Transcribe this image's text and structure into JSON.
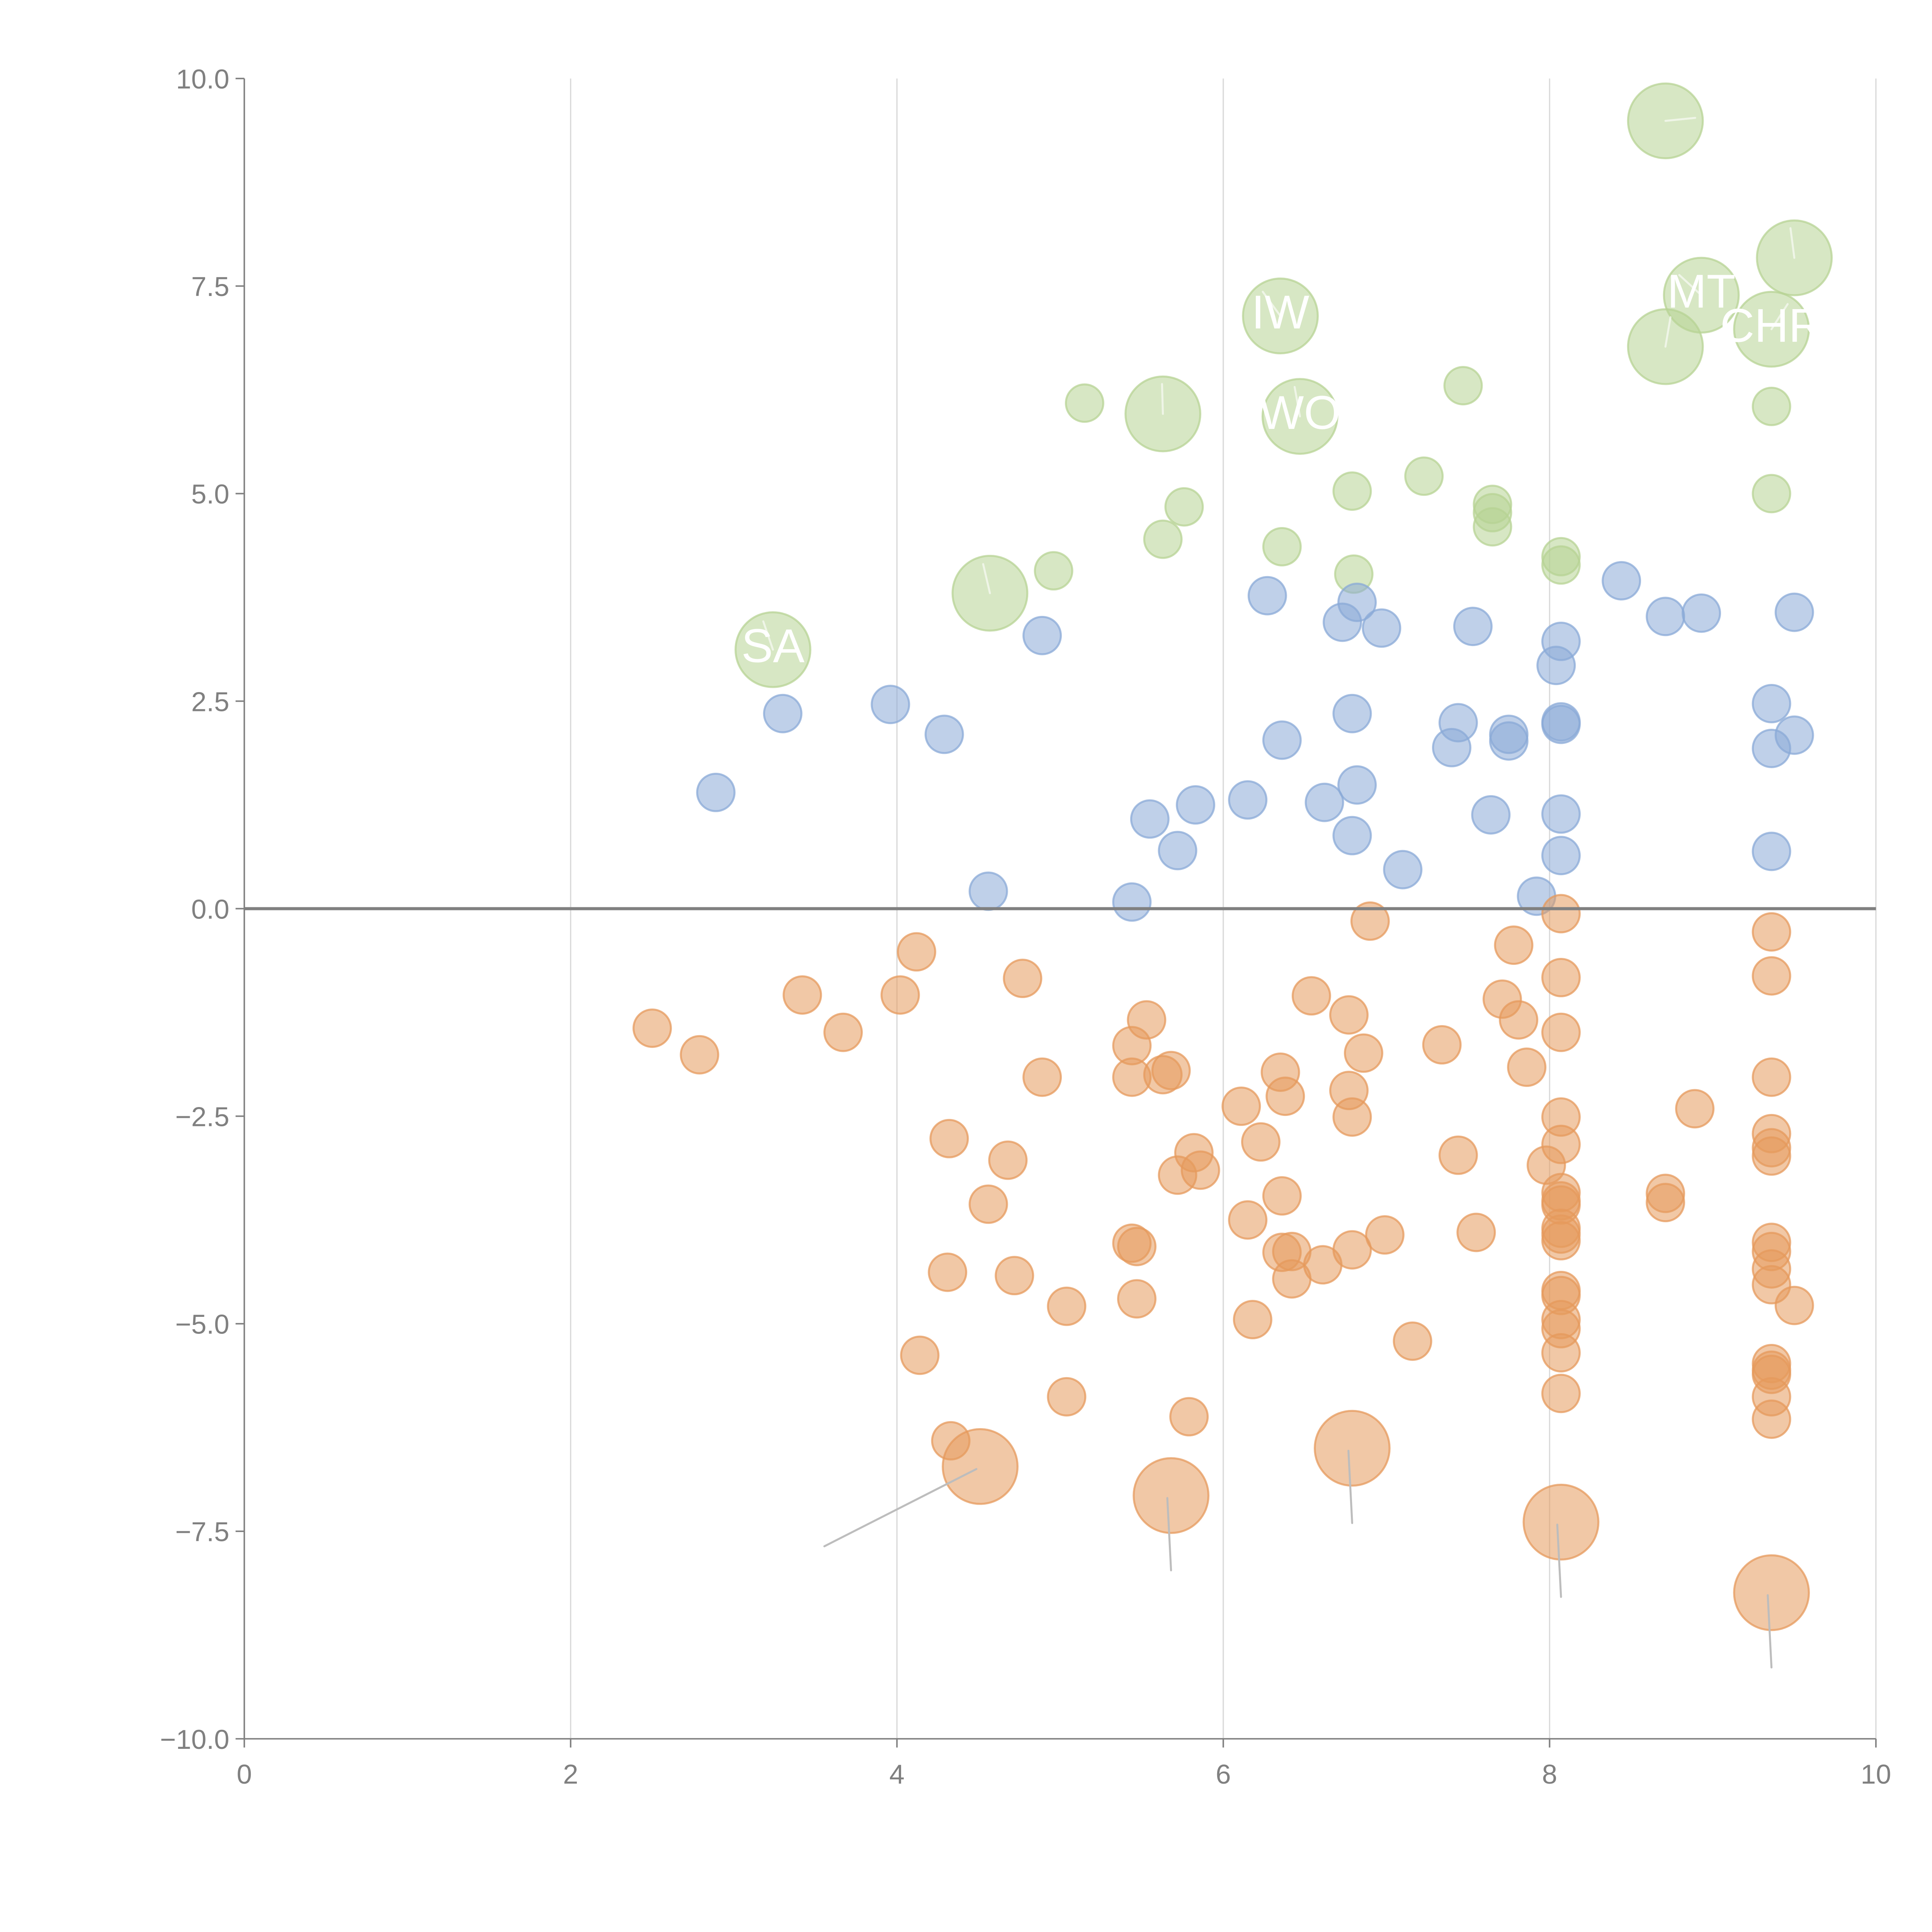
{
  "chart_data": {
    "type": "scatter",
    "title": "",
    "xlabel": "",
    "ylabel": "",
    "xlim": [
      0,
      10
    ],
    "ylim": [
      -10,
      10
    ],
    "x_ticks": [
      "0",
      "2",
      "4",
      "6",
      "8",
      "10"
    ],
    "y_ticks": [
      "10.0",
      "7.5",
      "5.0",
      "2.5",
      "0.0",
      "−2.5",
      "−5.0",
      "−7.5",
      "−10.0"
    ],
    "grid": "vertical",
    "reference_line": {
      "axis": "y",
      "value": 0
    },
    "legend": "none",
    "size_encoding": "bubble area (small=1, large=4)",
    "series": [
      {
        "name": "green",
        "color": "#b7d394",
        "points": [
          {
            "x": 3.24,
            "y": 3.12,
            "size": 4,
            "label": "SA"
          },
          {
            "x": 4.57,
            "y": 3.8,
            "size": 4,
            "label": ""
          },
          {
            "x": 4.96,
            "y": 4.07,
            "size": 1,
            "label": ""
          },
          {
            "x": 5.15,
            "y": 6.09,
            "size": 1,
            "label": ""
          },
          {
            "x": 5.63,
            "y": 5.96,
            "size": 4,
            "label": ""
          },
          {
            "x": 5.63,
            "y": 4.45,
            "size": 1,
            "label": ""
          },
          {
            "x": 5.76,
            "y": 4.84,
            "size": 1,
            "label": ""
          },
          {
            "x": 6.35,
            "y": 7.14,
            "size": 4,
            "label": "IW"
          },
          {
            "x": 6.36,
            "y": 4.36,
            "size": 1,
            "label": ""
          },
          {
            "x": 6.47,
            "y": 5.93,
            "size": 4,
            "label": "WO"
          },
          {
            "x": 6.79,
            "y": 5.03,
            "size": 1,
            "label": ""
          },
          {
            "x": 6.8,
            "y": 4.03,
            "size": 1,
            "label": ""
          },
          {
            "x": 7.23,
            "y": 5.21,
            "size": 1,
            "label": ""
          },
          {
            "x": 7.47,
            "y": 6.3,
            "size": 1,
            "label": ""
          },
          {
            "x": 7.65,
            "y": 4.87,
            "size": 1,
            "label": ""
          },
          {
            "x": 7.65,
            "y": 4.77,
            "size": 1,
            "label": ""
          },
          {
            "x": 7.65,
            "y": 4.6,
            "size": 1,
            "label": ""
          },
          {
            "x": 8.07,
            "y": 4.24,
            "size": 1,
            "label": ""
          },
          {
            "x": 8.07,
            "y": 4.14,
            "size": 1,
            "label": ""
          },
          {
            "x": 8.71,
            "y": 9.49,
            "size": 4,
            "label": ""
          },
          {
            "x": 8.71,
            "y": 6.77,
            "size": 4,
            "label": ""
          },
          {
            "x": 8.93,
            "y": 7.39,
            "size": 4,
            "label": "MT"
          },
          {
            "x": 9.36,
            "y": 6.98,
            "size": 4,
            "label": "CHR"
          },
          {
            "x": 9.5,
            "y": 7.84,
            "size": 4,
            "label": ""
          },
          {
            "x": 9.36,
            "y": 6.05,
            "size": 1,
            "label": ""
          },
          {
            "x": 9.36,
            "y": 5.0,
            "size": 1,
            "label": ""
          }
        ]
      },
      {
        "name": "blue",
        "color": "#8aaad7",
        "points": [
          {
            "x": 2.89,
            "y": 1.4,
            "size": 1
          },
          {
            "x": 3.3,
            "y": 2.35,
            "size": 1
          },
          {
            "x": 3.96,
            "y": 2.46,
            "size": 1
          },
          {
            "x": 4.29,
            "y": 2.1,
            "size": 1
          },
          {
            "x": 4.56,
            "y": 0.21,
            "size": 1
          },
          {
            "x": 4.89,
            "y": 3.29,
            "size": 1
          },
          {
            "x": 5.44,
            "y": 0.08,
            "size": 1
          },
          {
            "x": 5.55,
            "y": 1.08,
            "size": 1
          },
          {
            "x": 5.72,
            "y": 0.7,
            "size": 1
          },
          {
            "x": 5.83,
            "y": 1.25,
            "size": 1
          },
          {
            "x": 6.15,
            "y": 1.31,
            "size": 1
          },
          {
            "x": 6.27,
            "y": 3.77,
            "size": 1
          },
          {
            "x": 6.36,
            "y": 2.03,
            "size": 1
          },
          {
            "x": 6.62,
            "y": 1.28,
            "size": 1
          },
          {
            "x": 6.73,
            "y": 3.45,
            "size": 1
          },
          {
            "x": 6.79,
            "y": 2.35,
            "size": 1
          },
          {
            "x": 6.79,
            "y": 0.88,
            "size": 1
          },
          {
            "x": 6.82,
            "y": 3.69,
            "size": 1
          },
          {
            "x": 6.82,
            "y": 1.49,
            "size": 1
          },
          {
            "x": 6.97,
            "y": 3.38,
            "size": 1
          },
          {
            "x": 7.1,
            "y": 0.47,
            "size": 1
          },
          {
            "x": 7.4,
            "y": 1.94,
            "size": 1
          },
          {
            "x": 7.44,
            "y": 2.24,
            "size": 1
          },
          {
            "x": 7.53,
            "y": 3.4,
            "size": 1
          },
          {
            "x": 7.64,
            "y": 1.13,
            "size": 1
          },
          {
            "x": 7.75,
            "y": 2.1,
            "size": 1
          },
          {
            "x": 7.75,
            "y": 2.02,
            "size": 1
          },
          {
            "x": 7.92,
            "y": 0.15,
            "size": 1
          },
          {
            "x": 8.04,
            "y": 2.93,
            "size": 1
          },
          {
            "x": 8.07,
            "y": 3.22,
            "size": 1
          },
          {
            "x": 8.07,
            "y": 2.25,
            "size": 1
          },
          {
            "x": 8.07,
            "y": 2.22,
            "size": 1
          },
          {
            "x": 8.07,
            "y": 1.14,
            "size": 1
          },
          {
            "x": 8.07,
            "y": 0.64,
            "size": 1
          },
          {
            "x": 8.44,
            "y": 3.95,
            "size": 1
          },
          {
            "x": 8.71,
            "y": 3.52,
            "size": 1
          },
          {
            "x": 8.93,
            "y": 3.56,
            "size": 1
          },
          {
            "x": 9.36,
            "y": 2.47,
            "size": 1
          },
          {
            "x": 9.36,
            "y": 1.93,
            "size": 1
          },
          {
            "x": 9.36,
            "y": 0.69,
            "size": 1
          },
          {
            "x": 9.5,
            "y": 3.57,
            "size": 1
          },
          {
            "x": 9.5,
            "y": 2.09,
            "size": 1
          }
        ]
      },
      {
        "name": "orange",
        "color": "#e69a5c",
        "points": [
          {
            "x": 2.5,
            "y": -1.44,
            "size": 1
          },
          {
            "x": 2.79,
            "y": -1.76,
            "size": 1
          },
          {
            "x": 3.42,
            "y": -1.04,
            "size": 1
          },
          {
            "x": 3.67,
            "y": -1.49,
            "size": 1
          },
          {
            "x": 4.02,
            "y": -1.04,
            "size": 1
          },
          {
            "x": 4.12,
            "y": -0.52,
            "size": 1
          },
          {
            "x": 4.14,
            "y": -5.38,
            "size": 1
          },
          {
            "x": 4.32,
            "y": -2.77,
            "size": 1
          },
          {
            "x": 4.31,
            "y": -4.38,
            "size": 1
          },
          {
            "x": 4.33,
            "y": -6.41,
            "size": 1
          },
          {
            "x": 4.51,
            "y": -6.72,
            "size": 4
          },
          {
            "x": 4.56,
            "y": -3.56,
            "size": 1
          },
          {
            "x": 4.68,
            "y": -3.03,
            "size": 1
          },
          {
            "x": 4.72,
            "y": -4.42,
            "size": 1
          },
          {
            "x": 4.77,
            "y": -0.84,
            "size": 1
          },
          {
            "x": 4.89,
            "y": -2.03,
            "size": 1
          },
          {
            "x": 5.04,
            "y": -4.79,
            "size": 1
          },
          {
            "x": 5.04,
            "y": -5.88,
            "size": 1
          },
          {
            "x": 5.44,
            "y": -1.65,
            "size": 1
          },
          {
            "x": 5.44,
            "y": -2.03,
            "size": 1
          },
          {
            "x": 5.44,
            "y": -4.03,
            "size": 1
          },
          {
            "x": 5.47,
            "y": -4.7,
            "size": 1
          },
          {
            "x": 5.47,
            "y": -4.07,
            "size": 1
          },
          {
            "x": 5.53,
            "y": -1.34,
            "size": 1
          },
          {
            "x": 5.63,
            "y": -2.0,
            "size": 1
          },
          {
            "x": 5.68,
            "y": -1.95,
            "size": 1
          },
          {
            "x": 5.68,
            "y": -7.07,
            "size": 4
          },
          {
            "x": 5.72,
            "y": -3.21,
            "size": 1
          },
          {
            "x": 5.79,
            "y": -6.12,
            "size": 1
          },
          {
            "x": 5.82,
            "y": -2.94,
            "size": 1
          },
          {
            "x": 5.86,
            "y": -3.15,
            "size": 1
          },
          {
            "x": 6.11,
            "y": -2.38,
            "size": 1
          },
          {
            "x": 6.15,
            "y": -3.75,
            "size": 1
          },
          {
            "x": 6.18,
            "y": -4.95,
            "size": 1
          },
          {
            "x": 6.23,
            "y": -2.81,
            "size": 1
          },
          {
            "x": 6.35,
            "y": -1.97,
            "size": 1
          },
          {
            "x": 6.36,
            "y": -3.46,
            "size": 1
          },
          {
            "x": 6.38,
            "y": -2.26,
            "size": 1
          },
          {
            "x": 6.36,
            "y": -4.14,
            "size": 1
          },
          {
            "x": 6.42,
            "y": -4.13,
            "size": 1
          },
          {
            "x": 6.42,
            "y": -4.46,
            "size": 1
          },
          {
            "x": 6.54,
            "y": -1.05,
            "size": 1
          },
          {
            "x": 6.61,
            "y": -4.29,
            "size": 1
          },
          {
            "x": 6.77,
            "y": -1.28,
            "size": 1
          },
          {
            "x": 6.77,
            "y": -2.19,
            "size": 1
          },
          {
            "x": 6.79,
            "y": -2.51,
            "size": 1
          },
          {
            "x": 6.79,
            "y": -4.11,
            "size": 1
          },
          {
            "x": 6.79,
            "y": -6.5,
            "size": 4
          },
          {
            "x": 6.86,
            "y": -1.74,
            "size": 1
          },
          {
            "x": 6.9,
            "y": -0.15,
            "size": 1
          },
          {
            "x": 6.99,
            "y": -3.93,
            "size": 1
          },
          {
            "x": 7.16,
            "y": -5.21,
            "size": 1
          },
          {
            "x": 7.34,
            "y": -1.64,
            "size": 1
          },
          {
            "x": 7.44,
            "y": -2.97,
            "size": 1
          },
          {
            "x": 7.55,
            "y": -3.9,
            "size": 1
          },
          {
            "x": 7.71,
            "y": -1.09,
            "size": 1
          },
          {
            "x": 7.78,
            "y": -0.44,
            "size": 1
          },
          {
            "x": 7.81,
            "y": -1.34,
            "size": 1
          },
          {
            "x": 7.86,
            "y": -1.91,
            "size": 1
          },
          {
            "x": 7.98,
            "y": -3.09,
            "size": 1
          },
          {
            "x": 8.07,
            "y": -0.06,
            "size": 1
          },
          {
            "x": 8.07,
            "y": -0.83,
            "size": 1
          },
          {
            "x": 8.07,
            "y": -1.49,
            "size": 1
          },
          {
            "x": 8.07,
            "y": -2.51,
            "size": 1
          },
          {
            "x": 8.07,
            "y": -2.84,
            "size": 1
          },
          {
            "x": 8.07,
            "y": -3.42,
            "size": 1
          },
          {
            "x": 8.07,
            "y": -3.52,
            "size": 1
          },
          {
            "x": 8.07,
            "y": -3.57,
            "size": 1
          },
          {
            "x": 8.07,
            "y": -3.85,
            "size": 1
          },
          {
            "x": 8.07,
            "y": -3.92,
            "size": 1
          },
          {
            "x": 8.07,
            "y": -4.0,
            "size": 1
          },
          {
            "x": 8.07,
            "y": -4.6,
            "size": 1
          },
          {
            "x": 8.07,
            "y": -4.66,
            "size": 1
          },
          {
            "x": 8.07,
            "y": -4.95,
            "size": 1
          },
          {
            "x": 8.07,
            "y": -5.06,
            "size": 1
          },
          {
            "x": 8.07,
            "y": -5.35,
            "size": 1
          },
          {
            "x": 8.07,
            "y": -5.84,
            "size": 1
          },
          {
            "x": 8.07,
            "y": -7.39,
            "size": 4
          },
          {
            "x": 8.71,
            "y": -3.43,
            "size": 1
          },
          {
            "x": 8.71,
            "y": -3.54,
            "size": 1
          },
          {
            "x": 8.89,
            "y": -2.41,
            "size": 1
          },
          {
            "x": 9.36,
            "y": -0.28,
            "size": 1
          },
          {
            "x": 9.36,
            "y": -0.81,
            "size": 1
          },
          {
            "x": 9.36,
            "y": -2.03,
            "size": 1
          },
          {
            "x": 9.36,
            "y": -2.71,
            "size": 1
          },
          {
            "x": 9.36,
            "y": -2.88,
            "size": 1
          },
          {
            "x": 9.36,
            "y": -2.98,
            "size": 1
          },
          {
            "x": 9.36,
            "y": -4.02,
            "size": 1
          },
          {
            "x": 9.36,
            "y": -4.13,
            "size": 1
          },
          {
            "x": 9.36,
            "y": -4.34,
            "size": 1
          },
          {
            "x": 9.36,
            "y": -4.53,
            "size": 1
          },
          {
            "x": 9.36,
            "y": -5.48,
            "size": 1
          },
          {
            "x": 9.36,
            "y": -5.56,
            "size": 1
          },
          {
            "x": 9.36,
            "y": -5.61,
            "size": 1
          },
          {
            "x": 9.36,
            "y": -5.88,
            "size": 1
          },
          {
            "x": 9.36,
            "y": -6.15,
            "size": 1
          },
          {
            "x": 9.36,
            "y": -8.24,
            "size": 4
          },
          {
            "x": 9.5,
            "y": -4.78,
            "size": 1
          }
        ]
      }
    ]
  }
}
